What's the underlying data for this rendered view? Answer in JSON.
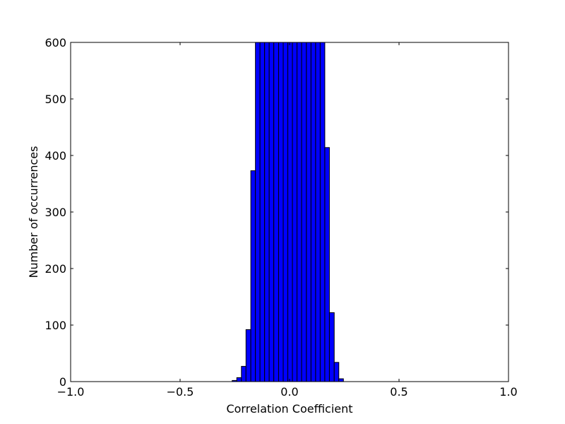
{
  "chart_data": {
    "type": "bar",
    "title": "",
    "xlabel": "Correlation Coefficient",
    "ylabel": "Number of occurrences",
    "xlim": [
      -1.0,
      1.0
    ],
    "ylim": [
      0,
      600
    ],
    "xticks": [
      -1.0,
      -0.5,
      0.0,
      0.5,
      1.0
    ],
    "xtick_labels": [
      "−1.0",
      "−0.5",
      "0.0",
      "0.5",
      "1.0"
    ],
    "yticks": [
      0,
      100,
      200,
      300,
      400,
      500,
      600
    ],
    "ytick_labels": [
      "0",
      "100",
      "200",
      "300",
      "400",
      "500",
      "600"
    ],
    "grid": false,
    "bar_color": "#0000ff",
    "edge_color": "#000000",
    "bins": [
      {
        "x0": -0.262,
        "x1": -0.241,
        "value": 2
      },
      {
        "x0": -0.241,
        "x1": -0.22,
        "value": 7
      },
      {
        "x0": -0.22,
        "x1": -0.199,
        "value": 27
      },
      {
        "x0": -0.199,
        "x1": -0.177,
        "value": 92
      },
      {
        "x0": -0.177,
        "x1": -0.156,
        "value": 373
      },
      {
        "x0": -0.156,
        "x1": -0.135,
        "value": 600
      },
      {
        "x0": -0.135,
        "x1": -0.114,
        "value": 600
      },
      {
        "x0": -0.114,
        "x1": -0.093,
        "value": 600
      },
      {
        "x0": -0.093,
        "x1": -0.072,
        "value": 600
      },
      {
        "x0": -0.072,
        "x1": -0.05,
        "value": 600
      },
      {
        "x0": -0.05,
        "x1": -0.029,
        "value": 600
      },
      {
        "x0": -0.029,
        "x1": -0.008,
        "value": 600
      },
      {
        "x0": -0.008,
        "x1": 0.013,
        "value": 600
      },
      {
        "x0": 0.013,
        "x1": 0.034,
        "value": 600
      },
      {
        "x0": 0.034,
        "x1": 0.055,
        "value": 600
      },
      {
        "x0": 0.055,
        "x1": 0.077,
        "value": 600
      },
      {
        "x0": 0.077,
        "x1": 0.098,
        "value": 600
      },
      {
        "x0": 0.098,
        "x1": 0.119,
        "value": 600
      },
      {
        "x0": 0.119,
        "x1": 0.14,
        "value": 600
      },
      {
        "x0": 0.14,
        "x1": 0.161,
        "value": 600
      },
      {
        "x0": 0.161,
        "x1": 0.182,
        "value": 414
      },
      {
        "x0": 0.182,
        "x1": 0.204,
        "value": 122
      },
      {
        "x0": 0.204,
        "x1": 0.225,
        "value": 34
      },
      {
        "x0": 0.225,
        "x1": 0.246,
        "value": 5
      }
    ]
  }
}
